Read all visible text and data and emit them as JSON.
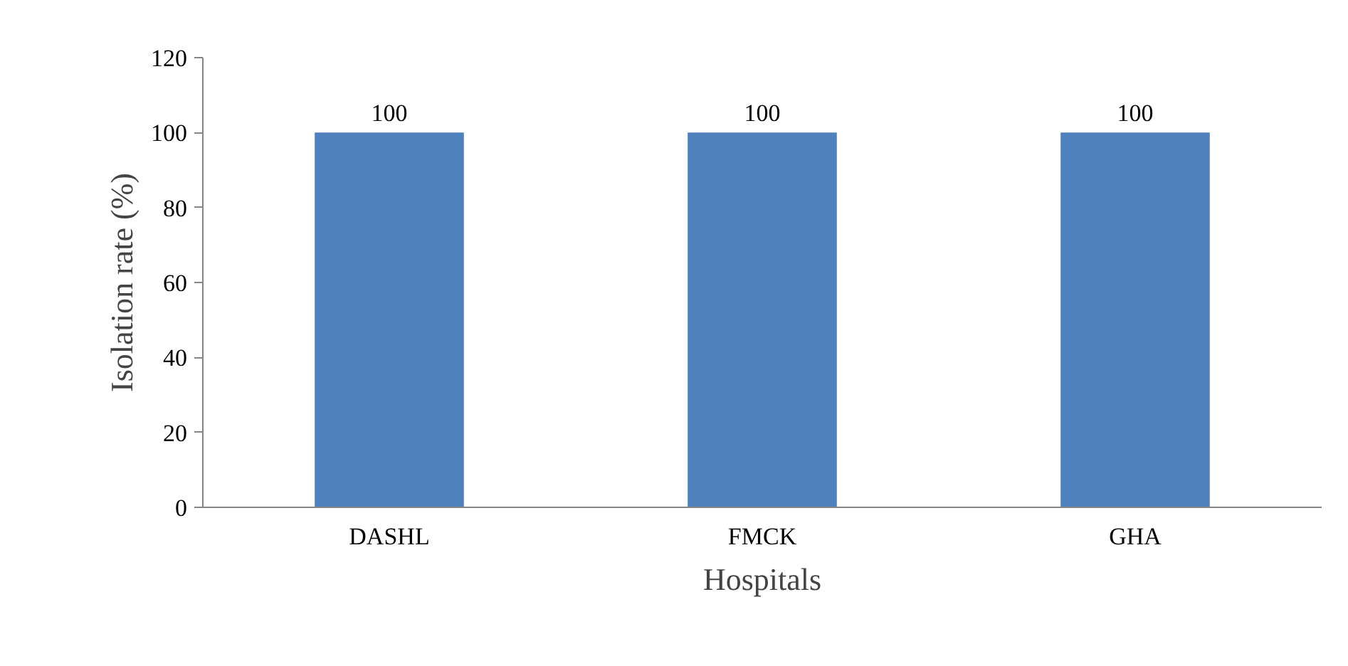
{
  "chart_data": {
    "type": "bar",
    "xlabel": "Hospitals",
    "ylabel": "Isolation rate (%)",
    "categories": [
      "DASHL",
      "FMCK",
      "GHA"
    ],
    "values": [
      100,
      100,
      100
    ],
    "color": "#4f81bd",
    "ylim": [
      0,
      120
    ],
    "yticks": [
      0,
      20,
      40,
      60,
      80,
      100,
      120
    ],
    "grid": false,
    "data_labels": true
  }
}
